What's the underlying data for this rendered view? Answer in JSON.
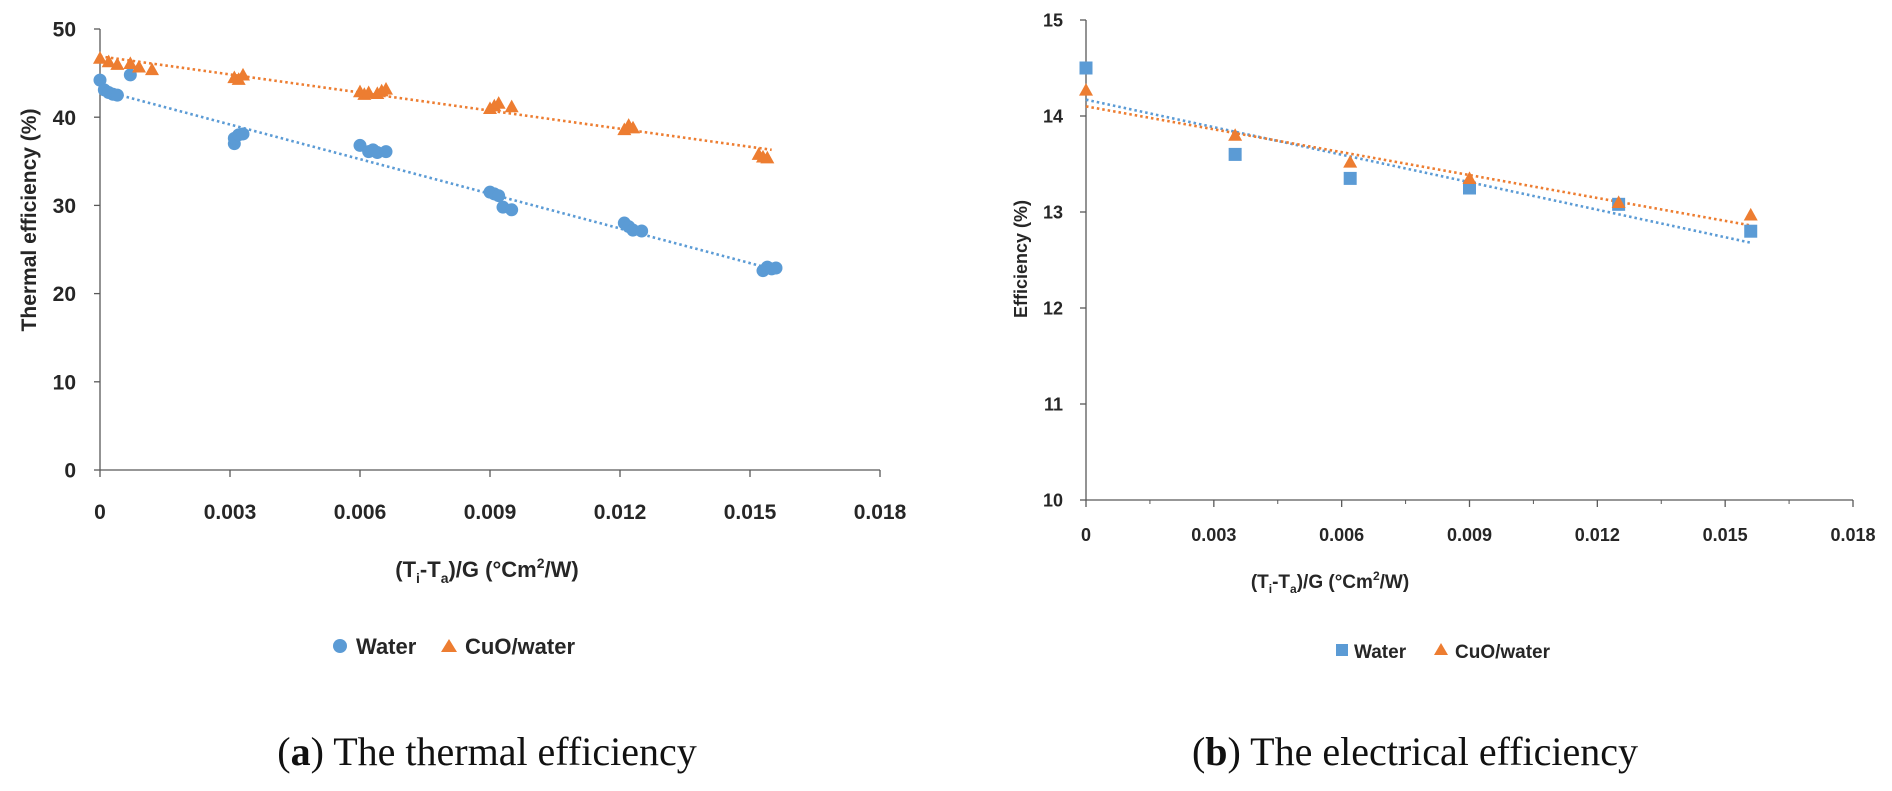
{
  "colors": {
    "water": "#5b9bd5",
    "cuo": "#ed7d31",
    "axis": "#595959",
    "text": "#262626"
  },
  "chart_data": [
    {
      "type": "scatter",
      "panel": "a",
      "caption": {
        "letter": "a",
        "text": " The thermal efficiency"
      },
      "ylabel": "Thermal efficiency (%)",
      "xlabel": "(Ti-Ta)/G (°Cm²/W)",
      "xlabel_parts": {
        "a": "(T",
        "sub1": "i",
        "b": "-T",
        "sub2": "a",
        "c": ")/G (°Cm",
        "sup": "2",
        "d": "/W)"
      },
      "xlim": [
        0,
        0.018
      ],
      "ylim": [
        0,
        50
      ],
      "xticks": [
        0,
        0.003,
        0.006,
        0.009,
        0.012,
        0.015,
        0.018
      ],
      "xtick_labels": [
        "0",
        "0.003",
        "0.006",
        "0.009",
        "0.012",
        "0.015",
        "0.018"
      ],
      "yticks": [
        0,
        10,
        20,
        30,
        40,
        50
      ],
      "ytick_labels": [
        "0",
        "10",
        "20",
        "30",
        "40",
        "50"
      ],
      "legend": {
        "position": "bottom",
        "entries": [
          "Water",
          "CuO/water"
        ]
      },
      "series": [
        {
          "name": "Water",
          "marker": "circle",
          "color": "#5b9bd5",
          "points": [
            [
              0.0,
              44.2
            ],
            [
              0.0001,
              43.1
            ],
            [
              0.0002,
              42.8
            ],
            [
              0.0003,
              42.6
            ],
            [
              0.0004,
              42.5
            ],
            [
              0.0007,
              44.8
            ],
            [
              0.0031,
              37.0
            ],
            [
              0.0031,
              37.6
            ],
            [
              0.0032,
              38.0
            ],
            [
              0.0033,
              38.1
            ],
            [
              0.006,
              36.8
            ],
            [
              0.0062,
              36.1
            ],
            [
              0.0063,
              36.3
            ],
            [
              0.0064,
              36.0
            ],
            [
              0.0066,
              36.1
            ],
            [
              0.009,
              31.5
            ],
            [
              0.0091,
              31.3
            ],
            [
              0.0092,
              31.1
            ],
            [
              0.0093,
              29.8
            ],
            [
              0.0095,
              29.5
            ],
            [
              0.0121,
              28.0
            ],
            [
              0.0122,
              27.6
            ],
            [
              0.0123,
              27.2
            ],
            [
              0.0125,
              27.1
            ],
            [
              0.0153,
              22.6
            ],
            [
              0.0154,
              23.0
            ],
            [
              0.0155,
              22.8
            ],
            [
              0.0156,
              22.9
            ]
          ],
          "trend": [
            [
              0,
              43.1
            ],
            [
              0.0155,
              22.8
            ]
          ]
        },
        {
          "name": "CuO/water",
          "marker": "triangle",
          "color": "#ed7d31",
          "points": [
            [
              0.0,
              46.7
            ],
            [
              0.0002,
              46.3
            ],
            [
              0.0004,
              46.0
            ],
            [
              0.0007,
              46.1
            ],
            [
              0.0009,
              45.7
            ],
            [
              0.0012,
              45.4
            ],
            [
              0.0031,
              44.5
            ],
            [
              0.0032,
              44.3
            ],
            [
              0.0033,
              44.8
            ],
            [
              0.006,
              42.9
            ],
            [
              0.0061,
              42.6
            ],
            [
              0.0062,
              42.8
            ],
            [
              0.0064,
              42.7
            ],
            [
              0.0065,
              43.0
            ],
            [
              0.0066,
              43.2
            ],
            [
              0.009,
              41.0
            ],
            [
              0.0091,
              41.3
            ],
            [
              0.0092,
              41.6
            ],
            [
              0.0095,
              41.2
            ],
            [
              0.0121,
              38.6
            ],
            [
              0.0122,
              39.1
            ],
            [
              0.0123,
              38.8
            ],
            [
              0.0152,
              35.8
            ],
            [
              0.0153,
              35.5
            ],
            [
              0.0154,
              35.4
            ]
          ],
          "trend": [
            [
              0,
              46.9
            ],
            [
              0.0155,
              36.3
            ]
          ]
        }
      ]
    },
    {
      "type": "scatter",
      "panel": "b",
      "caption": {
        "letter": "b",
        "text": " The electrical efficiency"
      },
      "ylabel": "Efficiency (%)",
      "xlabel": "(Ti-Ta)/G (°Cm²/W)",
      "xlabel_parts": {
        "a": "(T",
        "sub1": "i",
        "b": "-T",
        "sub2": "a",
        "c": ")/G  (°Cm",
        "sup": "2",
        "d": "/W)"
      },
      "xlim": [
        0,
        0.018
      ],
      "ylim": [
        10,
        15
      ],
      "xticks": [
        0,
        0.003,
        0.006,
        0.009,
        0.012,
        0.015,
        0.018
      ],
      "xtick_labels": [
        "0",
        "0.003",
        "0.006",
        "0.009",
        "0.012",
        "0.015",
        "0.018"
      ],
      "yticks": [
        10,
        11,
        12,
        13,
        14,
        15
      ],
      "ytick_labels": [
        "10",
        "11",
        "12",
        "13",
        "14",
        "15"
      ],
      "legend": {
        "position": "bottom",
        "entries": [
          "Water",
          "CuO/water"
        ]
      },
      "series": [
        {
          "name": "Water",
          "marker": "square",
          "color": "#5b9bd5",
          "points": [
            [
              0.0,
              14.5
            ],
            [
              0.0035,
              13.6
            ],
            [
              0.0062,
              13.35
            ],
            [
              0.009,
              13.25
            ],
            [
              0.0125,
              13.08
            ],
            [
              0.0156,
              12.8
            ]
          ],
          "trend": [
            [
              0,
              14.17
            ],
            [
              0.0156,
              12.68
            ]
          ]
        },
        {
          "name": "CuO/water",
          "marker": "triangle",
          "color": "#ed7d31",
          "points": [
            [
              0.0,
              14.27
            ],
            [
              0.0035,
              13.8
            ],
            [
              0.0062,
              13.52
            ],
            [
              0.009,
              13.35
            ],
            [
              0.0125,
              13.1
            ],
            [
              0.0156,
              12.97
            ]
          ],
          "trend": [
            [
              0,
              14.1
            ],
            [
              0.0156,
              12.86
            ]
          ]
        }
      ]
    }
  ]
}
